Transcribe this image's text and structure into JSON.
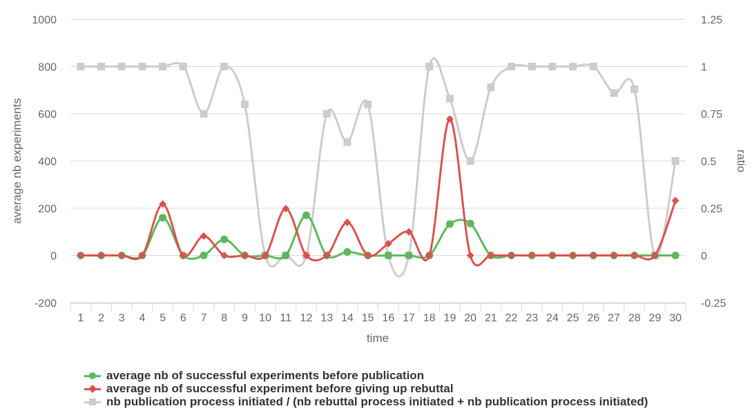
{
  "chart_data": {
    "type": "line",
    "xlabel": "time",
    "ylabel": "average nb experiments",
    "ylabel_right": "ratio",
    "x": [
      1,
      2,
      3,
      4,
      5,
      6,
      7,
      8,
      9,
      10,
      11,
      12,
      13,
      14,
      15,
      16,
      17,
      18,
      19,
      20,
      21,
      22,
      23,
      24,
      25,
      26,
      27,
      28,
      29,
      30
    ],
    "ylim": [
      -200,
      1000
    ],
    "yticks": [
      -200,
      0,
      200,
      400,
      600,
      800,
      1000
    ],
    "ylim_right": [
      -0.25,
      1.25
    ],
    "yticks_right": [
      "-0.25",
      "0",
      "0.25",
      "0.5",
      "0.75",
      "1",
      "1.25"
    ],
    "grid": true,
    "legend_position": "bottom-left",
    "series": [
      {
        "name": "average nb of successful experiments before publication",
        "axis": "left",
        "color": "#5cb85c",
        "marker": "circle",
        "values": [
          0,
          0,
          0,
          0,
          160,
          0,
          0,
          68,
          0,
          0,
          0,
          170,
          0,
          15,
          0,
          0,
          0,
          0,
          133,
          135,
          0,
          0,
          0,
          0,
          0,
          0,
          0,
          0,
          0,
          0
        ]
      },
      {
        "name": "average nb of successful experiment before giving up rebuttal",
        "axis": "left",
        "color": "#d9534f",
        "marker": "diamond",
        "values": [
          0,
          0,
          0,
          0,
          218,
          0,
          82,
          0,
          0,
          0,
          198,
          0,
          0,
          140,
          0,
          50,
          100,
          0,
          578,
          0,
          0,
          0,
          0,
          0,
          0,
          0,
          0,
          0,
          0,
          232
        ]
      },
      {
        "name": "nb publication process initiated / (nb rebuttal process initiated + nb publication process initiated)",
        "axis": "right",
        "color": "#cccccc",
        "marker": "square",
        "values": [
          1,
          1,
          1,
          1,
          1,
          1,
          0.75,
          1,
          0.8,
          0,
          0,
          0,
          0.75,
          0.6,
          0.8,
          0,
          0,
          1,
          0.83,
          0.5,
          0.89,
          1,
          1,
          1,
          1,
          1,
          0.86,
          0.88,
          0,
          0.5
        ]
      }
    ]
  }
}
